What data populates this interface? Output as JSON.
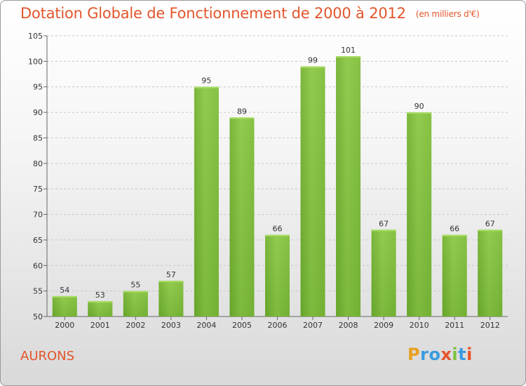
{
  "title": "Dotation Globale de Fonctionnement de 2000 à 2012",
  "unit": "(en milliers d'€)",
  "commune": "AURONS",
  "logo": {
    "letters": [
      "P",
      "r",
      "o",
      "x",
      "i",
      "t",
      "i"
    ],
    "colors": [
      "#e8a020",
      "#3a9be0",
      "#3a9be0",
      "#e8552b",
      "#7cc23a",
      "#3a9be0",
      "#e8552b"
    ]
  },
  "chart_data": {
    "type": "bar",
    "categories": [
      "2000",
      "2001",
      "2002",
      "2003",
      "2004",
      "2005",
      "2006",
      "2007",
      "2008",
      "2009",
      "2010",
      "2011",
      "2012"
    ],
    "values": [
      54,
      53,
      55,
      57,
      95,
      89,
      66,
      99,
      101,
      67,
      90,
      66,
      67
    ],
    "ylim": [
      50,
      105
    ],
    "yticks": [
      50,
      55,
      60,
      65,
      70,
      75,
      80,
      85,
      90,
      95,
      100,
      105
    ],
    "grid": true,
    "bar_color": "#7ab93a"
  }
}
